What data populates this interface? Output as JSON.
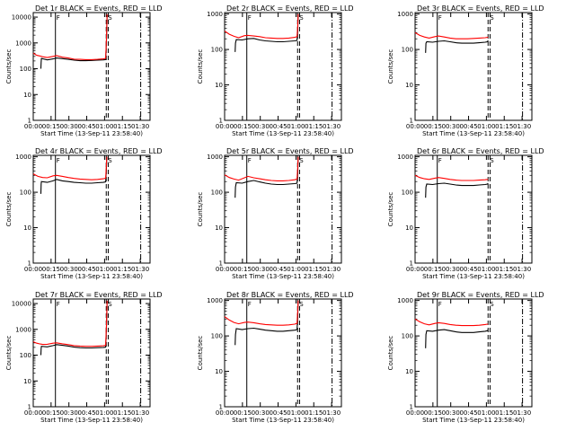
{
  "chart_data": [
    {
      "type": "line",
      "title": "Det 1r BLACK = Events, RED = LLD",
      "xlabel": "Start Time (13-Sep-11 23:58:40)",
      "ylabel": "Counts/sec",
      "ylim": [
        1,
        15000
      ],
      "yscale": "log",
      "yticks": [
        "1",
        "10",
        "100",
        "1000",
        "10000"
      ],
      "xlim": [
        0,
        100
      ],
      "xticks": [
        "00:00",
        "00:15",
        "00:30",
        "00:45",
        "01:00",
        "01:15",
        "01:30"
      ],
      "annotations": [
        "F",
        "S"
      ],
      "series": [
        {
          "name": "Events",
          "color": "#000000",
          "x": [
            6.5,
            6.8,
            7,
            12,
            17,
            20,
            25,
            30,
            35,
            40,
            45,
            50,
            55,
            60,
            62,
            62.8,
            63.2
          ],
          "y": [
            100,
            180,
            250,
            220,
            240,
            260,
            245,
            230,
            215,
            205,
            205,
            210,
            215,
            220,
            225,
            1500,
            12000
          ]
        },
        {
          "name": "LLD",
          "color": "#ff0000",
          "x": [
            0,
            3,
            6,
            8,
            12,
            17,
            20,
            25,
            30,
            35,
            40,
            45,
            50,
            55,
            60,
            62,
            62.8,
            63.2
          ],
          "y": [
            400,
            330,
            310,
            290,
            270,
            300,
            320,
            280,
            260,
            235,
            230,
            225,
            225,
            230,
            240,
            250,
            1800,
            13000
          ]
        }
      ]
    },
    {
      "type": "line",
      "title": "Det 2r BLACK = Events, RED = LLD",
      "xlabel": "Start Time (13-Sep-11 23:58:40)",
      "ylabel": "Counts/sec",
      "ylim": [
        1,
        1100
      ],
      "yscale": "log",
      "yticks": [
        "1",
        "10",
        "100",
        "1000"
      ],
      "xlim": [
        0,
        100
      ],
      "xticks": [
        "00:00",
        "00:15",
        "00:30",
        "00:45",
        "01:00",
        "01:15",
        "01:30"
      ],
      "annotations": [
        "F",
        "S"
      ],
      "series": [
        {
          "name": "Events",
          "color": "#000000",
          "x": [
            9,
            9.3,
            10,
            15,
            20,
            25,
            30,
            35,
            40,
            45,
            50,
            55,
            60,
            62,
            62.5,
            63
          ],
          "y": [
            85,
            150,
            190,
            185,
            200,
            205,
            185,
            175,
            170,
            165,
            165,
            170,
            175,
            180,
            300,
            1000
          ]
        },
        {
          "name": "LLD",
          "color": "#ff0000",
          "x": [
            0,
            4,
            8,
            12,
            17,
            20,
            25,
            30,
            35,
            40,
            45,
            50,
            55,
            60,
            62,
            62.5,
            63
          ],
          "y": [
            330,
            270,
            235,
            215,
            245,
            250,
            240,
            230,
            215,
            210,
            205,
            205,
            210,
            220,
            230,
            400,
            1000
          ]
        }
      ]
    },
    {
      "type": "line",
      "title": "Det 3r BLACK = Events, RED = LLD",
      "xlabel": "Start Time (13-Sep-11 23:58:40)",
      "ylabel": "Counts/sec",
      "ylim": [
        1,
        1100
      ],
      "yscale": "log",
      "yticks": [
        "1",
        "10",
        "100",
        "1000"
      ],
      "xlim": [
        0,
        100
      ],
      "xticks": [
        "00:00",
        "00:15",
        "00:30",
        "00:45",
        "01:00",
        "01:15",
        "01:30"
      ],
      "annotations": [
        "F",
        "S"
      ],
      "series": [
        {
          "name": "Events",
          "color": "#000000",
          "x": [
            9,
            9.3,
            10,
            15,
            20,
            25,
            30,
            35,
            40,
            45,
            50,
            55,
            60,
            62,
            62.5
          ],
          "y": [
            80,
            150,
            165,
            160,
            170,
            175,
            165,
            155,
            150,
            150,
            150,
            155,
            160,
            165,
            180
          ]
        },
        {
          "name": "LLD",
          "color": "#ff0000",
          "x": [
            0,
            4,
            8,
            12,
            17,
            20,
            25,
            30,
            35,
            40,
            45,
            50,
            55,
            60,
            62,
            62.5
          ],
          "y": [
            300,
            250,
            225,
            210,
            230,
            240,
            225,
            210,
            200,
            200,
            200,
            205,
            210,
            215,
            220,
            220
          ]
        }
      ]
    },
    {
      "type": "line",
      "title": "Det 4r BLACK = Events, RED = LLD",
      "xlabel": "Start Time (13-Sep-11 23:58:40)",
      "ylabel": "Counts/sec",
      "ylim": [
        1,
        1100
      ],
      "yscale": "log",
      "yticks": [
        "1",
        "10",
        "100",
        "1000"
      ],
      "xlim": [
        0,
        100
      ],
      "xticks": [
        "00:00",
        "00:15",
        "00:30",
        "00:45",
        "01:00",
        "01:15",
        "01:30"
      ],
      "annotations": [
        "F",
        "S"
      ],
      "series": [
        {
          "name": "Events",
          "color": "#000000",
          "x": [
            6.5,
            6.8,
            7,
            12,
            17,
            20,
            25,
            30,
            35,
            40,
            45,
            50,
            55,
            60,
            62,
            62.5,
            63
          ],
          "y": [
            90,
            170,
            200,
            190,
            210,
            230,
            210,
            200,
            190,
            185,
            180,
            180,
            185,
            190,
            195,
            400,
            1000
          ]
        },
        {
          "name": "LLD",
          "color": "#ff0000",
          "x": [
            0,
            4,
            8,
            12,
            17,
            20,
            25,
            30,
            35,
            40,
            45,
            50,
            55,
            60,
            62,
            62.5,
            63
          ],
          "y": [
            330,
            280,
            260,
            255,
            290,
            300,
            280,
            260,
            245,
            235,
            230,
            225,
            230,
            240,
            250,
            500,
            1000
          ]
        }
      ]
    },
    {
      "type": "line",
      "title": "Det 5r BLACK = Events, RED = LLD",
      "xlabel": "Start Time (13-Sep-11 23:58:40)",
      "ylabel": "Counts/sec",
      "ylim": [
        1,
        1100
      ],
      "yscale": "log",
      "yticks": [
        "1",
        "10",
        "100",
        "1000"
      ],
      "xlim": [
        0,
        100
      ],
      "xticks": [
        "00:00",
        "00:15",
        "00:30",
        "00:45",
        "01:00",
        "01:15",
        "01:30"
      ],
      "annotations": [
        "F",
        "S"
      ],
      "series": [
        {
          "name": "Events",
          "color": "#000000",
          "x": [
            9,
            9.3,
            10,
            15,
            20,
            25,
            30,
            35,
            40,
            45,
            50,
            55,
            60,
            62,
            62.5,
            63
          ],
          "y": [
            70,
            140,
            185,
            180,
            200,
            215,
            195,
            180,
            170,
            165,
            165,
            170,
            175,
            180,
            300,
            1000
          ]
        },
        {
          "name": "LLD",
          "color": "#ff0000",
          "x": [
            0,
            4,
            8,
            12,
            17,
            20,
            25,
            30,
            35,
            40,
            45,
            50,
            55,
            60,
            62,
            62.5,
            63
          ],
          "y": [
            310,
            260,
            235,
            220,
            255,
            280,
            255,
            240,
            225,
            215,
            210,
            210,
            215,
            225,
            235,
            450,
            1000
          ]
        }
      ]
    },
    {
      "type": "line",
      "title": "Det 6r BLACK = Events, RED = LLD",
      "xlabel": "Start Time (13-Sep-11 23:58:40)",
      "ylabel": "Counts/sec",
      "ylim": [
        1,
        1100
      ],
      "yscale": "log",
      "yticks": [
        "1",
        "10",
        "100",
        "1000"
      ],
      "xlim": [
        0,
        100
      ],
      "xticks": [
        "00:00",
        "00:15",
        "00:30",
        "00:45",
        "01:00",
        "01:15",
        "01:30"
      ],
      "annotations": [
        "F",
        "S"
      ],
      "series": [
        {
          "name": "Events",
          "color": "#000000",
          "x": [
            9,
            9.3,
            10,
            15,
            20,
            25,
            30,
            35,
            40,
            45,
            50,
            55,
            60,
            62,
            62.5
          ],
          "y": [
            70,
            140,
            170,
            165,
            175,
            180,
            170,
            160,
            155,
            155,
            155,
            160,
            165,
            170,
            180
          ]
        },
        {
          "name": "LLD",
          "color": "#ff0000",
          "x": [
            0,
            4,
            8,
            12,
            17,
            20,
            25,
            30,
            35,
            40,
            45,
            50,
            55,
            60,
            62,
            62.5
          ],
          "y": [
            300,
            260,
            240,
            230,
            250,
            260,
            245,
            230,
            220,
            215,
            215,
            215,
            220,
            225,
            230,
            230
          ]
        }
      ]
    },
    {
      "type": "line",
      "title": "Det 7r BLACK = Events, RED = LLD",
      "xlabel": "Start Time (13-Sep-11 23:58:40)",
      "ylabel": "Counts/sec",
      "ylim": [
        1,
        15000
      ],
      "yscale": "log",
      "yticks": [
        "1",
        "10",
        "100",
        "1000",
        "10000"
      ],
      "xlim": [
        0,
        100
      ],
      "xticks": [
        "00:00",
        "00:15",
        "00:30",
        "00:45",
        "01:00",
        "01:15",
        "01:30"
      ],
      "annotations": [
        "F",
        "S"
      ],
      "series": [
        {
          "name": "Events",
          "color": "#000000",
          "x": [
            6.5,
            6.8,
            7,
            12,
            17,
            20,
            25,
            30,
            35,
            40,
            45,
            50,
            55,
            60,
            62,
            62.8,
            63.2
          ],
          "y": [
            100,
            180,
            220,
            210,
            235,
            255,
            240,
            225,
            205,
            195,
            190,
            190,
            195,
            200,
            205,
            1500,
            12000
          ]
        },
        {
          "name": "LLD",
          "color": "#ff0000",
          "x": [
            0,
            3,
            6,
            8,
            12,
            17,
            20,
            25,
            30,
            35,
            40,
            45,
            50,
            55,
            60,
            62,
            62.8,
            63.2
          ],
          "y": [
            330,
            290,
            270,
            260,
            265,
            290,
            300,
            275,
            255,
            235,
            225,
            220,
            220,
            225,
            230,
            240,
            1800,
            13000
          ]
        }
      ]
    },
    {
      "type": "line",
      "title": "Det 8r BLACK = Events, RED = LLD",
      "xlabel": "Start Time (13-Sep-11 23:58:40)",
      "ylabel": "Counts/sec",
      "ylim": [
        1,
        1100
      ],
      "yscale": "log",
      "yticks": [
        "1",
        "10",
        "100",
        "1000"
      ],
      "xlim": [
        0,
        100
      ],
      "xticks": [
        "00:00",
        "00:15",
        "00:30",
        "00:45",
        "01:00",
        "01:15",
        "01:30"
      ],
      "annotations": [
        "F",
        "S"
      ],
      "series": [
        {
          "name": "Events",
          "color": "#000000",
          "x": [
            9,
            9.3,
            10,
            15,
            20,
            25,
            30,
            35,
            40,
            45,
            50,
            55,
            60,
            62,
            62.5,
            63
          ],
          "y": [
            55,
            110,
            160,
            150,
            160,
            165,
            155,
            145,
            140,
            135,
            135,
            140,
            145,
            150,
            300,
            1000
          ]
        },
        {
          "name": "LLD",
          "color": "#ff0000",
          "x": [
            0,
            4,
            8,
            12,
            17,
            20,
            25,
            30,
            35,
            40,
            45,
            50,
            55,
            60,
            62,
            62.5,
            63
          ],
          "y": [
            350,
            280,
            240,
            220,
            240,
            245,
            235,
            220,
            210,
            205,
            200,
            200,
            205,
            215,
            225,
            450,
            1000
          ]
        }
      ]
    },
    {
      "type": "line",
      "title": "Det 9r BLACK = Events, RED = LLD",
      "xlabel": "Start Time (13-Sep-11 23:58:40)",
      "ylabel": "Counts/sec",
      "ylim": [
        1,
        1100
      ],
      "yscale": "log",
      "yticks": [
        "1",
        "10",
        "100",
        "1000"
      ],
      "xlim": [
        0,
        100
      ],
      "xticks": [
        "00:00",
        "00:15",
        "00:30",
        "00:45",
        "01:00",
        "01:15",
        "01:30"
      ],
      "annotations": [
        "F",
        "S"
      ],
      "series": [
        {
          "name": "Events",
          "color": "#000000",
          "x": [
            9,
            9.3,
            10,
            15,
            20,
            25,
            30,
            35,
            40,
            45,
            50,
            55,
            60,
            62,
            62.5
          ],
          "y": [
            45,
            110,
            140,
            135,
            145,
            150,
            140,
            130,
            125,
            125,
            125,
            130,
            135,
            140,
            150
          ]
        },
        {
          "name": "LLD",
          "color": "#ff0000",
          "x": [
            0,
            4,
            8,
            12,
            17,
            20,
            25,
            30,
            35,
            40,
            45,
            50,
            55,
            60,
            62,
            62.5
          ],
          "y": [
            300,
            250,
            220,
            205,
            225,
            235,
            225,
            210,
            200,
            195,
            195,
            195,
            200,
            210,
            215,
            215
          ]
        }
      ]
    }
  ]
}
